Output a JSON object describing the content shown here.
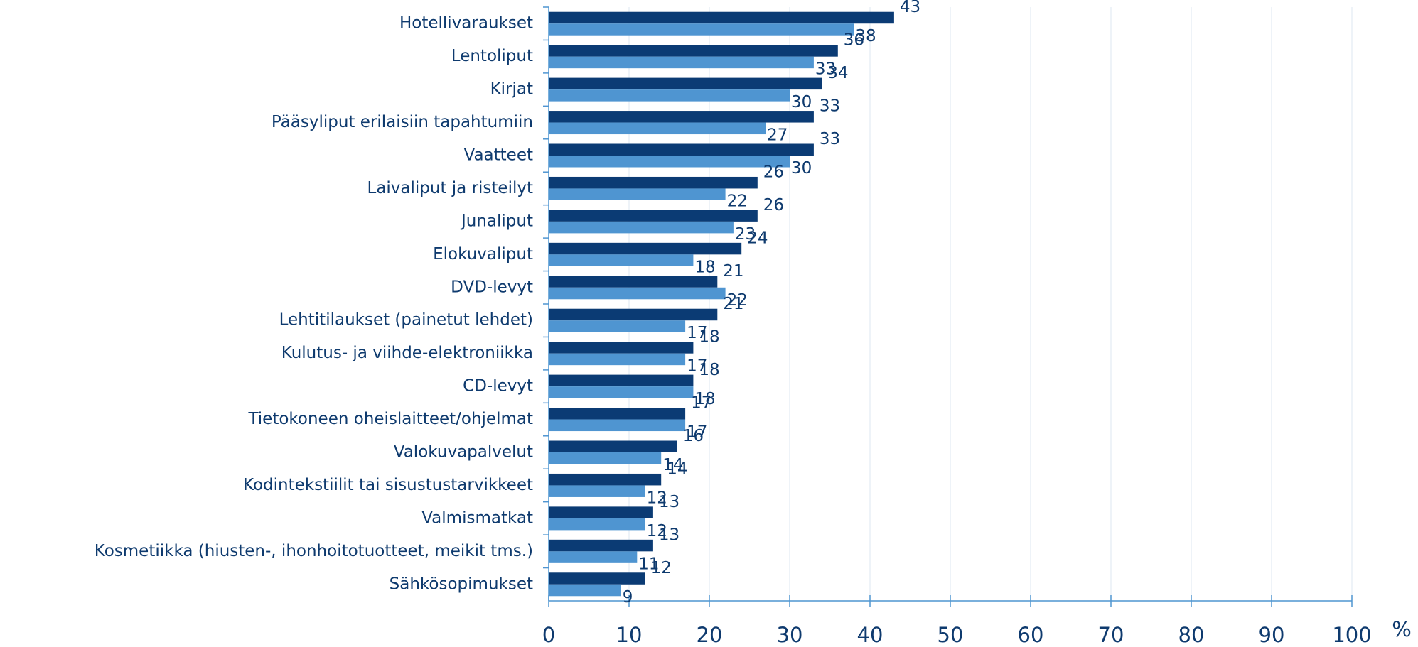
{
  "chart_data": {
    "type": "bar",
    "orientation": "horizontal",
    "xlabel": "%",
    "categories": [
      "Hotellivaraukset",
      "Lentoliput",
      "Kirjat",
      "Pääsyliput erilaisiin tapahtumiin",
      "Vaatteet",
      "Laivaliput ja risteilyt",
      "Junaliput",
      "Elokuvaliput",
      "DVD-levyt",
      "Lehtitilaukset (painetut lehdet)",
      "Kulutus- ja viihde-elektroniikka",
      "CD-levyt",
      "Tietokoneen oheislaitteet/ohjelmat",
      "Valokuvapalvelut",
      "Kodintekstiilit tai sisustustarvikkeet",
      "Valmismatkat",
      "Kosmetiikka (hiusten-, ihonhoitotuotteet, meikit tms.)",
      "Sähkösopimukset"
    ],
    "series": [
      {
        "color": "#0b3b74",
        "values": [
          43,
          36,
          34,
          33,
          33,
          26,
          26,
          24,
          21,
          21,
          18,
          18,
          17,
          16,
          14,
          13,
          13,
          12
        ]
      },
      {
        "color": "#4f95d1",
        "values": [
          38,
          33,
          30,
          27,
          30,
          22,
          23,
          18,
          22,
          17,
          17,
          18,
          17,
          14,
          12,
          12,
          11,
          9
        ]
      }
    ],
    "xlim": [
      0,
      100
    ],
    "xticks": [
      0,
      10,
      20,
      30,
      40,
      50,
      60,
      70,
      80,
      90,
      100
    ],
    "grid": true
  }
}
